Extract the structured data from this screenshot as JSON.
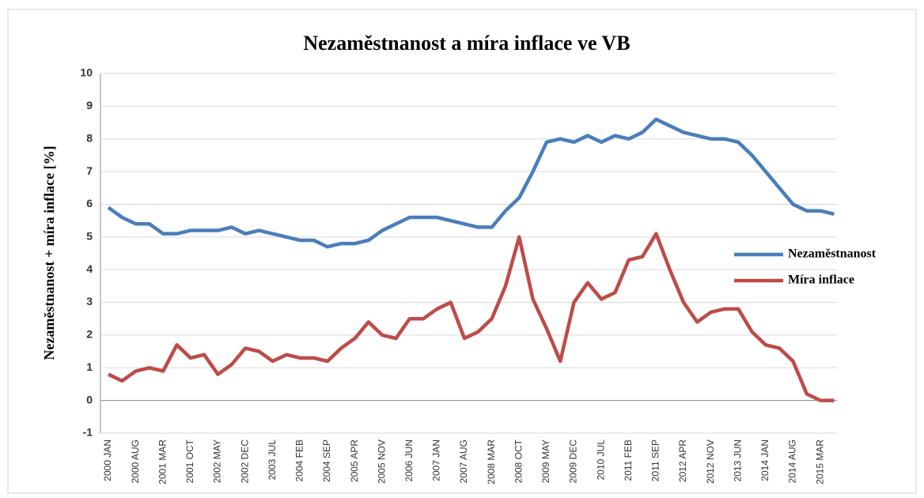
{
  "chart_data": {
    "type": "line",
    "title": "Nezaměstnanost a míra inflace ve VB",
    "y_label": "Nezaměstnanost + míra inflace [%]",
    "categories": [
      "2000 JAN",
      null,
      "2000 AUG",
      null,
      "2001 MAR",
      null,
      "2001 OCT",
      null,
      "2002 MAY",
      null,
      "2002 DEC",
      null,
      "2003 JUL",
      null,
      "2004 FEB",
      null,
      "2004 SEP",
      null,
      "2005 APR",
      null,
      "2005 NOV",
      null,
      "2006 JUN",
      null,
      "2007 JAN",
      null,
      "2007 AUG",
      null,
      "2008 MAR",
      null,
      "2008 OCT",
      null,
      "2009 MAY",
      null,
      "2009 DEC",
      null,
      "2010 JUL",
      null,
      "2011 FEB",
      null,
      "2011 SEP",
      null,
      "2012 APR",
      null,
      "2012 NOV",
      null,
      "2013 JUN",
      null,
      "2014 JAN",
      null,
      "2014 AUG",
      null,
      "2015 MAR",
      null
    ],
    "series": [
      {
        "name": "Nezaměstnanost",
        "color": "#4a7ebb",
        "values": [
          5.9,
          5.6,
          5.4,
          5.4,
          5.1,
          5.1,
          5.2,
          5.2,
          5.2,
          5.3,
          5.1,
          5.2,
          5.1,
          5.0,
          4.9,
          4.9,
          4.7,
          4.8,
          4.8,
          4.9,
          5.2,
          5.4,
          5.6,
          5.6,
          5.6,
          5.5,
          5.4,
          5.3,
          5.3,
          5.8,
          6.2,
          7.0,
          7.9,
          8.0,
          7.9,
          8.1,
          7.9,
          8.1,
          8.0,
          8.2,
          8.6,
          8.4,
          8.2,
          8.1,
          8.0,
          8.0,
          7.9,
          7.5,
          7.0,
          6.5,
          6.0,
          5.8,
          5.8,
          5.7
        ]
      },
      {
        "name": "Míra inflace",
        "color": "#be4b48",
        "values": [
          0.8,
          0.6,
          0.9,
          1.0,
          0.9,
          1.7,
          1.3,
          1.4,
          0.8,
          1.1,
          1.6,
          1.5,
          1.2,
          1.4,
          1.3,
          1.3,
          1.2,
          1.6,
          1.9,
          2.4,
          2.0,
          1.9,
          2.5,
          2.5,
          2.8,
          3.0,
          1.9,
          2.1,
          2.5,
          3.5,
          5.0,
          3.1,
          2.2,
          1.2,
          3.0,
          3.6,
          3.1,
          3.3,
          4.3,
          4.4,
          5.1,
          4.0,
          3.0,
          2.4,
          2.7,
          2.8,
          2.8,
          2.1,
          1.7,
          1.6,
          1.2,
          0.2,
          0.0,
          0.0
        ]
      }
    ],
    "ylim": [
      -1,
      10
    ],
    "yticks": [
      -1,
      0,
      1,
      2,
      3,
      4,
      5,
      6,
      7,
      8,
      9,
      10
    ],
    "grid": true,
    "legend": "right"
  }
}
